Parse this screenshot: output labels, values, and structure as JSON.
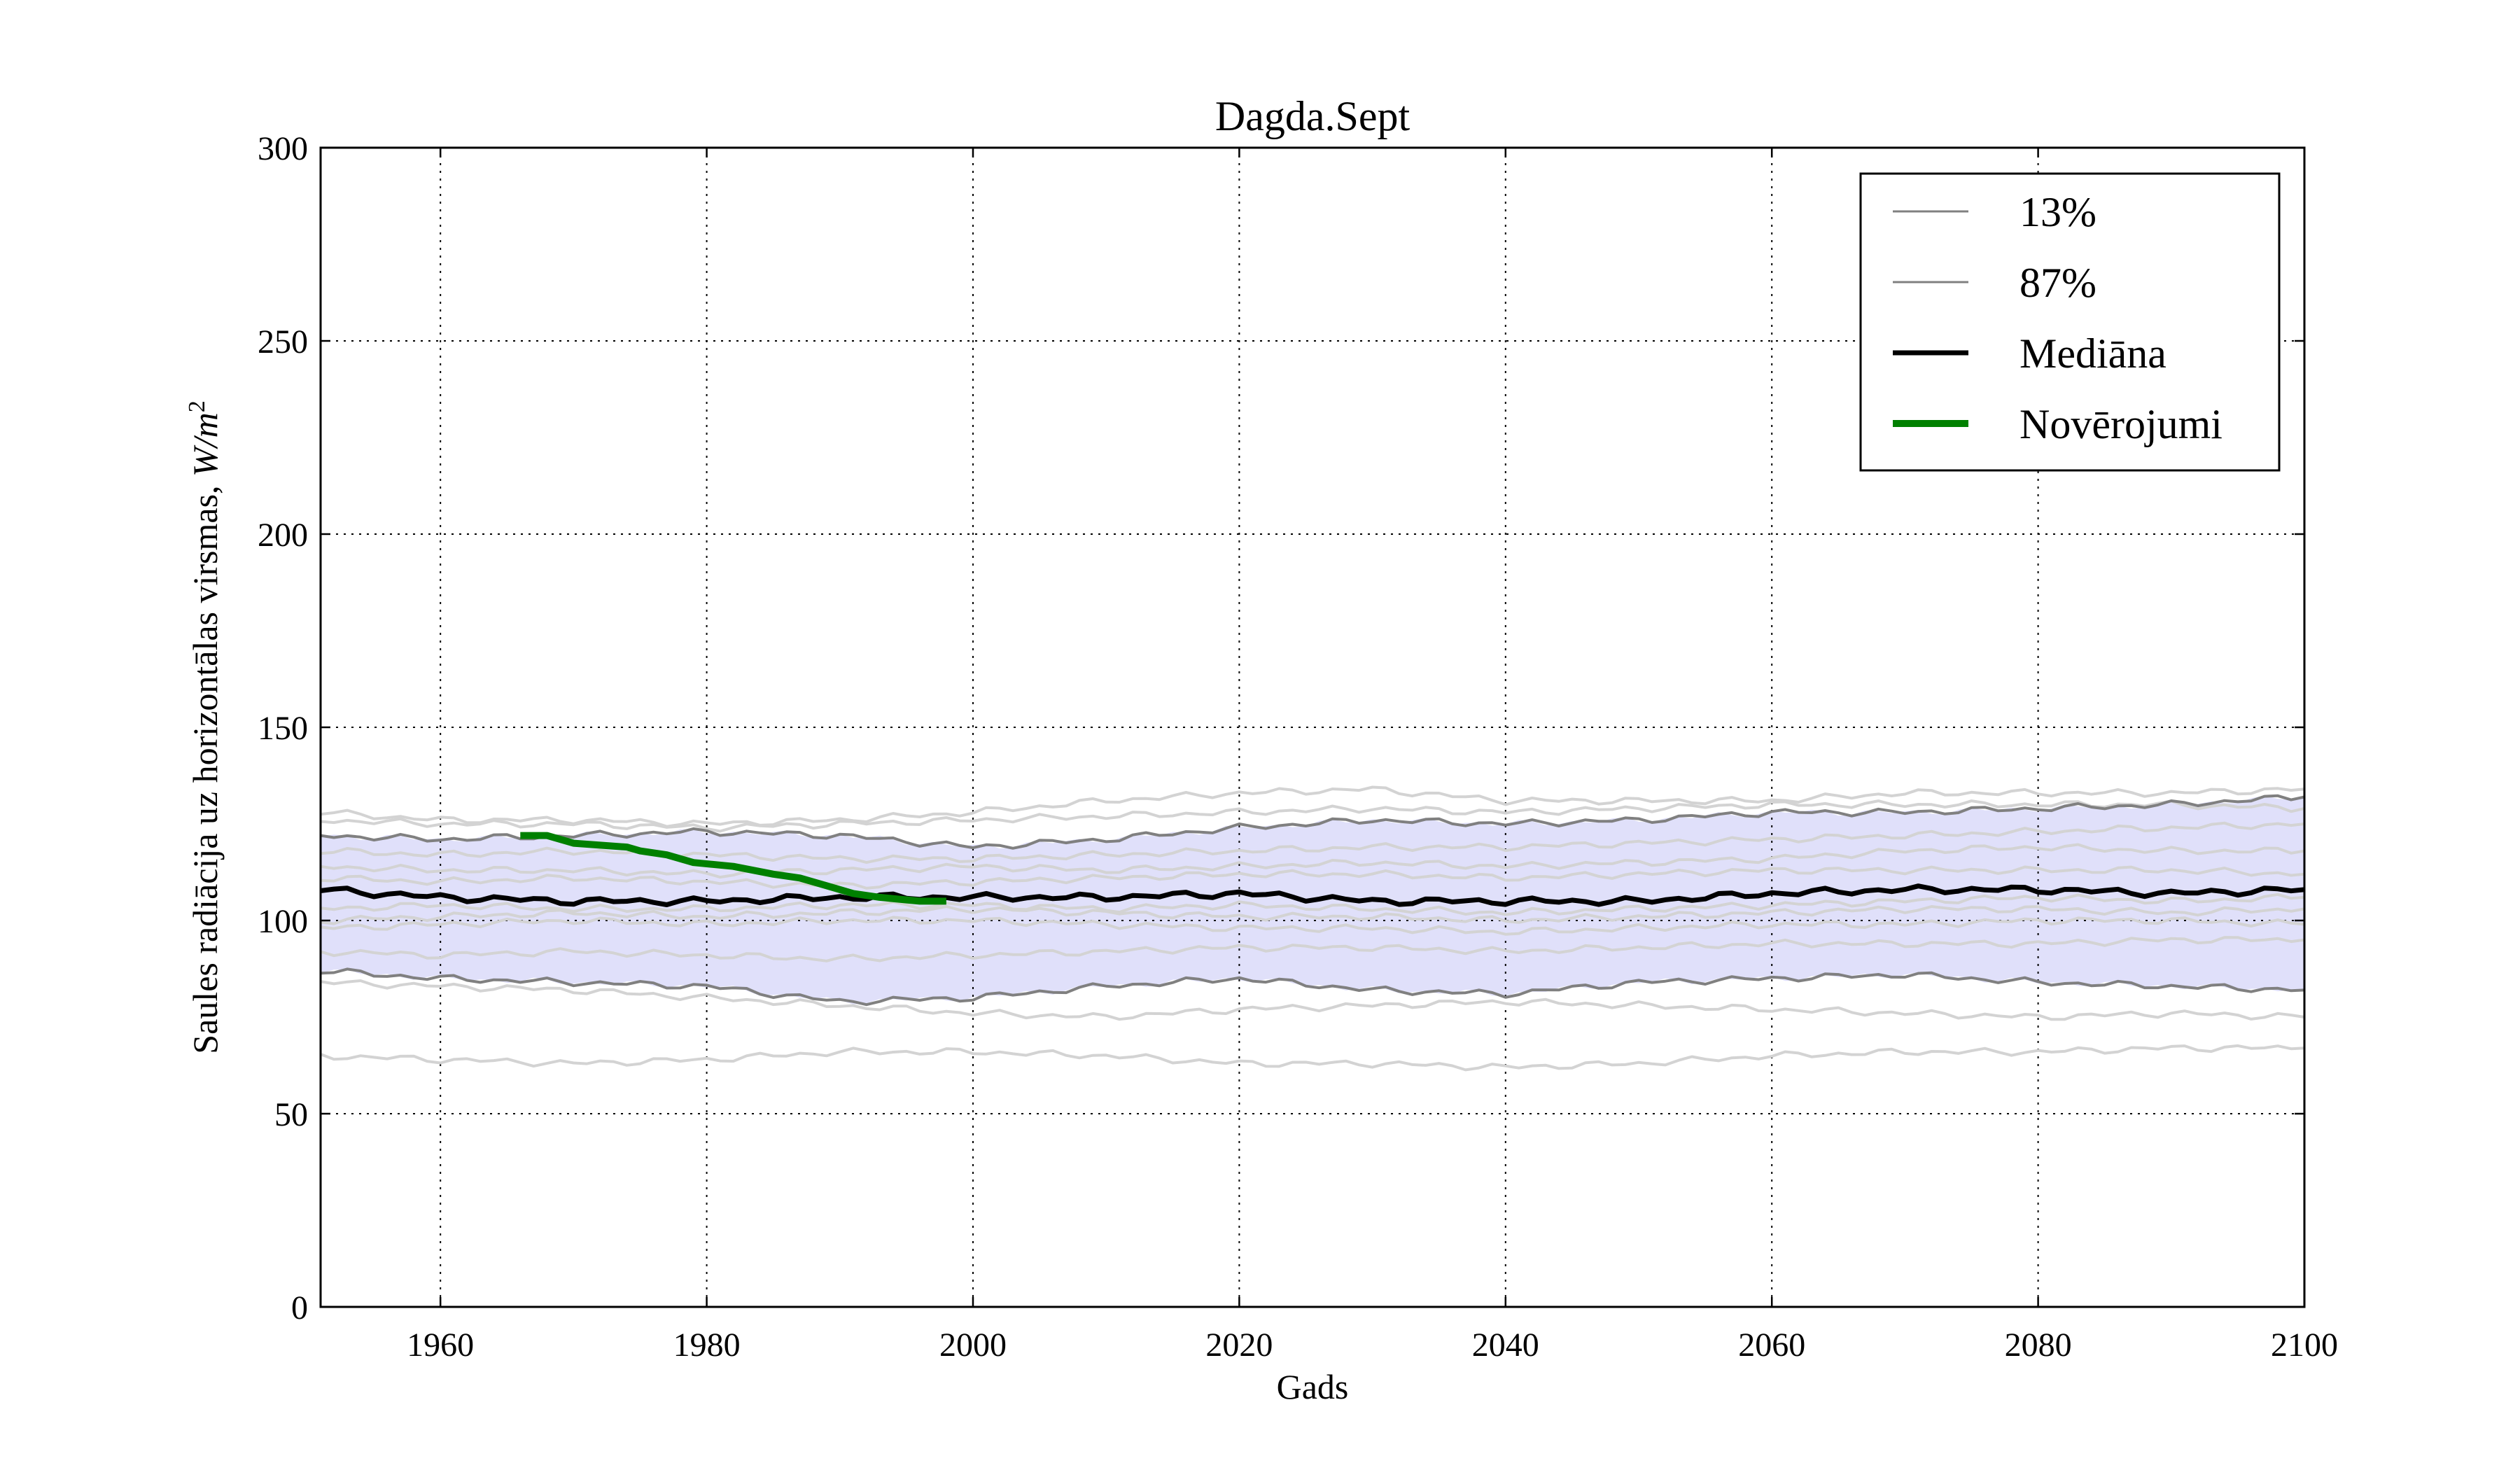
{
  "chart_data": {
    "type": "line",
    "title": "Dagda.Sept",
    "xlabel": "Gads",
    "ylabel_text": "Saules radiācija uz horizontālas virsmas, ",
    "ylabel_unit_W": "W",
    "ylabel_unit_slash": "/",
    "ylabel_unit_m": "m",
    "ylabel_unit_exp": "2",
    "xlim": [
      1951,
      2100
    ],
    "ylim": [
      0,
      300
    ],
    "x_ticks": [
      1960,
      1980,
      2000,
      2020,
      2040,
      2060,
      2080,
      2100
    ],
    "y_ticks": [
      0,
      50,
      100,
      150,
      200,
      250,
      300
    ],
    "x_tick_labels": [
      "1960",
      "1980",
      "2000",
      "2020",
      "2040",
      "2060",
      "2080",
      "2100"
    ],
    "y_tick_labels": [
      "0",
      "50",
      "100",
      "150",
      "200",
      "250",
      "300"
    ],
    "grid": true,
    "legend_position": "top-right",
    "legend": [
      {
        "label": "13%",
        "color": "#808080"
      },
      {
        "label": "87%",
        "color": "#808080"
      },
      {
        "label": "Mediāna",
        "color": "#000000"
      },
      {
        "label": "Novērojumi",
        "color": "#008000"
      }
    ],
    "colors": {
      "band": "#e0e0fa",
      "ensemble": "#d3d3d3",
      "percentile": "#808080",
      "median": "#000000",
      "observations": "#008000"
    },
    "band": {
      "name": "13%–87%",
      "x": [
        1951,
        1960,
        1970,
        1980,
        1990,
        2000,
        2010,
        2020,
        2030,
        2040,
        2050,
        2060,
        2070,
        2080,
        2090,
        2100
      ],
      "lower": [
        87,
        85,
        84,
        83,
        79,
        80,
        83,
        85,
        82,
        81,
        84,
        85,
        86,
        84,
        83,
        82
      ],
      "upper": [
        122,
        121,
        122,
        123,
        122,
        119,
        121,
        124,
        126,
        125,
        126,
        128,
        128,
        129,
        130,
        132
      ]
    },
    "series": [
      {
        "name": "13%",
        "role": "percentile",
        "x": [
          1951,
          1960,
          1970,
          1980,
          1990,
          2000,
          2010,
          2020,
          2030,
          2040,
          2050,
          2060,
          2070,
          2080,
          2090,
          2100
        ],
        "values": [
          87,
          85,
          84,
          83,
          79,
          80,
          83,
          85,
          82,
          81,
          84,
          85,
          86,
          84,
          83,
          82
        ]
      },
      {
        "name": "87%",
        "role": "percentile",
        "x": [
          1951,
          1960,
          1970,
          1980,
          1990,
          2000,
          2010,
          2020,
          2030,
          2040,
          2050,
          2060,
          2070,
          2080,
          2090,
          2100
        ],
        "values": [
          122,
          121,
          122,
          123,
          122,
          119,
          121,
          124,
          126,
          125,
          126,
          128,
          128,
          129,
          130,
          132
        ]
      },
      {
        "name": "Mediāna",
        "role": "median",
        "x": [
          1951,
          1960,
          1970,
          1980,
          1990,
          2000,
          2010,
          2020,
          2030,
          2040,
          2050,
          2060,
          2070,
          2080,
          2090,
          2100
        ],
        "values": [
          108,
          106,
          105,
          105,
          106,
          106,
          106,
          107,
          105,
          105,
          105,
          107,
          108,
          108,
          107,
          108
        ]
      },
      {
        "name": "Novērojumi",
        "role": "observations",
        "x": [
          1966,
          1968,
          1970,
          1972,
          1974,
          1975,
          1977,
          1979,
          1982,
          1985,
          1987,
          1989,
          1991,
          1993,
          1996,
          1998
        ],
        "values": [
          122,
          122,
          120,
          119.5,
          119,
          118,
          117,
          115,
          114,
          112,
          111,
          109,
          107,
          106,
          105,
          105
        ]
      },
      {
        "role": "ensemble",
        "x": [
          1951,
          1960,
          1970,
          1980,
          1990,
          2000,
          2010,
          2020,
          2030,
          2040,
          2050,
          2060,
          2070,
          2080,
          2090,
          2100
        ],
        "values": [
          128,
          126,
          126,
          125,
          126,
          128,
          131,
          133,
          134,
          131,
          131,
          131,
          133,
          133,
          133,
          134
        ]
      },
      {
        "role": "ensemble",
        "x": [
          1951,
          1960,
          1970,
          1980,
          1990,
          2000,
          2010,
          2020,
          2030,
          2040,
          2050,
          2060,
          2070,
          2080,
          2090,
          2100
        ],
        "values": [
          126,
          125,
          125,
          124,
          125,
          126,
          127,
          128,
          129,
          128,
          129,
          130,
          130,
          130,
          130,
          129
        ]
      },
      {
        "role": "ensemble",
        "x": [
          1951,
          1960,
          1970,
          1980,
          1990,
          2000,
          2010,
          2020,
          2030,
          2040,
          2050,
          2060,
          2070,
          2080,
          2090,
          2100
        ],
        "values": [
          118,
          117,
          118,
          117,
          116,
          116,
          117,
          118,
          119,
          119,
          120,
          121,
          122,
          123,
          124,
          125
        ]
      },
      {
        "role": "ensemble",
        "x": [
          1951,
          1960,
          1970,
          1980,
          1990,
          2000,
          2010,
          2020,
          2030,
          2040,
          2050,
          2060,
          2070,
          2080,
          2090,
          2100
        ],
        "values": [
          114,
          113,
          113,
          112,
          113,
          114,
          113,
          114,
          115,
          114,
          115,
          116,
          118,
          119,
          118,
          118
        ]
      },
      {
        "role": "ensemble",
        "x": [
          1951,
          1960,
          1970,
          1980,
          1990,
          2000,
          2010,
          2020,
          2030,
          2040,
          2050,
          2060,
          2070,
          2080,
          2090,
          2100
        ],
        "values": [
          111,
          110,
          111,
          110,
          109,
          110,
          111,
          112,
          112,
          111,
          112,
          113,
          113,
          113,
          113,
          112
        ]
      },
      {
        "role": "ensemble",
        "x": [
          1951,
          1960,
          1970,
          1980,
          1990,
          2000,
          2010,
          2020,
          2030,
          2040,
          2050,
          2060,
          2070,
          2080,
          2090,
          2100
        ],
        "values": [
          103,
          104,
          103,
          103,
          104,
          104,
          103,
          104,
          103,
          102,
          103,
          104,
          105,
          106,
          105,
          106
        ]
      },
      {
        "role": "ensemble",
        "x": [
          1951,
          1960,
          1970,
          1980,
          1990,
          2000,
          2010,
          2020,
          2030,
          2040,
          2050,
          2060,
          2070,
          2080,
          2090,
          2100
        ],
        "values": [
          100,
          101,
          102,
          101,
          102,
          103,
          102,
          101,
          101,
          100,
          101,
          102,
          103,
          103,
          102,
          103
        ]
      },
      {
        "role": "ensemble",
        "x": [
          1951,
          1960,
          1970,
          1980,
          1990,
          2000,
          2010,
          2020,
          2030,
          2040,
          2050,
          2060,
          2070,
          2080,
          2090,
          2100
        ],
        "values": [
          98,
          99,
          100,
          99,
          100,
          100,
          99,
          98,
          98,
          97,
          98,
          99,
          99,
          100,
          100,
          99
        ]
      },
      {
        "role": "ensemble",
        "x": [
          1951,
          1960,
          1970,
          1980,
          1990,
          2000,
          2010,
          2020,
          2030,
          2040,
          2050,
          2060,
          2070,
          2080,
          2090,
          2100
        ],
        "values": [
          92,
          91,
          92,
          91,
          90,
          91,
          92,
          93,
          93,
          92,
          93,
          94,
          94,
          94,
          95,
          95
        ]
      },
      {
        "role": "ensemble",
        "x": [
          1951,
          1960,
          1970,
          1980,
          1990,
          2000,
          2010,
          2020,
          2030,
          2040,
          2050,
          2060,
          2070,
          2080,
          2090,
          2100
        ],
        "values": [
          84,
          83,
          82,
          80,
          78,
          76,
          75,
          77,
          78,
          79,
          78,
          77,
          76,
          75,
          76,
          75
        ]
      },
      {
        "role": "ensemble",
        "x": [
          1951,
          1960,
          1970,
          1980,
          1990,
          2000,
          2010,
          2020,
          2030,
          2040,
          2050,
          2060,
          2070,
          2080,
          2090,
          2100
        ],
        "values": [
          65,
          64,
          63,
          64,
          66,
          66,
          65,
          63,
          63,
          62,
          63,
          65,
          66,
          66,
          67,
          67
        ]
      }
    ]
  }
}
